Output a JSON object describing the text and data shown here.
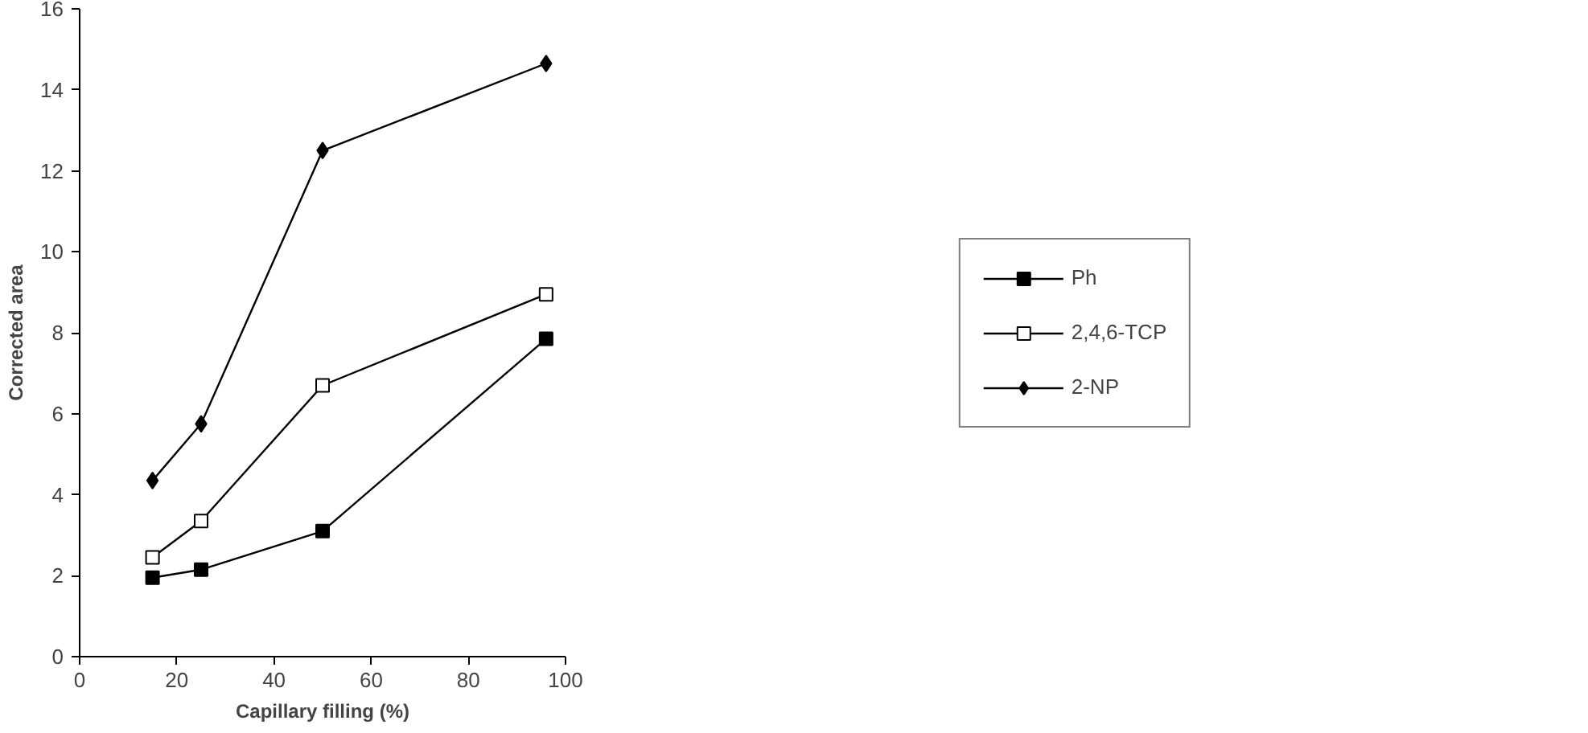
{
  "chart_data": {
    "type": "line",
    "xlabel": "Capillary filling (%)",
    "ylabel": "Corrected area",
    "x": [
      15,
      25,
      50,
      96
    ],
    "series": [
      {
        "name": "Ph",
        "color": "#000000",
        "marker": "square",
        "values": [
          1.95,
          2.15,
          3.1,
          7.85
        ]
      },
      {
        "name": "2,4,6-TCP",
        "color": "#000000",
        "marker": "square",
        "values": [
          2.45,
          3.35,
          6.7,
          8.95
        ]
      },
      {
        "name": "2-NP",
        "color": "#000000",
        "marker": "diamond",
        "values": [
          4.35,
          5.75,
          12.5,
          14.65
        ]
      }
    ],
    "xlim": [
      0,
      100
    ],
    "xticks": [
      0,
      20,
      40,
      60,
      80,
      100
    ],
    "ylim": [
      0,
      16
    ],
    "yticks": [
      0,
      2,
      4,
      6,
      8,
      10,
      12,
      14,
      16
    ],
    "grid": false,
    "legend": "right",
    "line_style": "solid"
  }
}
